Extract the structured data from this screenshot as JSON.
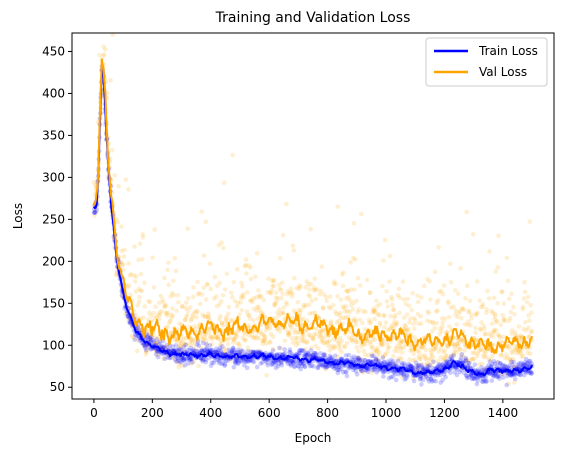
{
  "chart_data": {
    "type": "line",
    "title": "Training and Validation Loss",
    "xlabel": "Epoch",
    "ylabel": "Loss",
    "xlim": [
      -75,
      1575
    ],
    "ylim": [
      36,
      472
    ],
    "xticks": [
      0,
      200,
      400,
      600,
      800,
      1000,
      1200,
      1400
    ],
    "yticks": [
      50,
      100,
      150,
      200,
      250,
      300,
      350,
      400,
      450
    ],
    "grid": false,
    "legend": "top-right",
    "series": [
      {
        "name": "Train Loss",
        "color": "#0000ff",
        "line_keypoints": [
          [
            0,
            265
          ],
          [
            5,
            262
          ],
          [
            10,
            266
          ],
          [
            15,
            300
          ],
          [
            20,
            360
          ],
          [
            27,
            430
          ],
          [
            33,
            420
          ],
          [
            40,
            370
          ],
          [
            50,
            310
          ],
          [
            60,
            265
          ],
          [
            70,
            232
          ],
          [
            80,
            200
          ],
          [
            90,
            180
          ],
          [
            100,
            162
          ],
          [
            110,
            147
          ],
          [
            120,
            137
          ],
          [
            130,
            128
          ],
          [
            140,
            121
          ],
          [
            150,
            116
          ],
          [
            160,
            111
          ],
          [
            175,
            105
          ],
          [
            190,
            101
          ],
          [
            200,
            99
          ],
          [
            230,
            94
          ],
          [
            260,
            91
          ],
          [
            300,
            88
          ],
          [
            350,
            89
          ],
          [
            400,
            88
          ],
          [
            450,
            87
          ],
          [
            500,
            86
          ],
          [
            550,
            87
          ],
          [
            600,
            86
          ],
          [
            650,
            85
          ],
          [
            700,
            84
          ],
          [
            750,
            83
          ],
          [
            800,
            80
          ],
          [
            850,
            78
          ],
          [
            900,
            77
          ],
          [
            950,
            76
          ],
          [
            1000,
            74
          ],
          [
            1050,
            72
          ],
          [
            1100,
            68
          ],
          [
            1150,
            67
          ],
          [
            1200,
            72
          ],
          [
            1230,
            78
          ],
          [
            1260,
            75
          ],
          [
            1300,
            68
          ],
          [
            1330,
            63
          ],
          [
            1350,
            70
          ],
          [
            1380,
            72
          ],
          [
            1400,
            70
          ],
          [
            1430,
            68
          ],
          [
            1460,
            71
          ],
          [
            1480,
            73
          ],
          [
            1500,
            74
          ]
        ],
        "noise": 2.5
      },
      {
        "name": "Val Loss",
        "color": "#ffa500",
        "line_keypoints": [
          [
            0,
            270
          ],
          [
            5,
            268
          ],
          [
            10,
            272
          ],
          [
            15,
            305
          ],
          [
            20,
            370
          ],
          [
            27,
            440
          ],
          [
            33,
            425
          ],
          [
            40,
            380
          ],
          [
            50,
            320
          ],
          [
            60,
            280
          ],
          [
            70,
            245
          ],
          [
            80,
            210
          ],
          [
            90,
            190
          ],
          [
            100,
            175
          ],
          [
            110,
            160
          ],
          [
            120,
            150
          ],
          [
            130,
            140
          ],
          [
            150,
            130
          ],
          [
            175,
            122
          ],
          [
            200,
            118
          ],
          [
            250,
            115
          ],
          [
            300,
            113
          ],
          [
            350,
            118
          ],
          [
            400,
            122
          ],
          [
            450,
            120
          ],
          [
            500,
            121
          ],
          [
            550,
            122
          ],
          [
            600,
            127
          ],
          [
            650,
            128
          ],
          [
            700,
            126
          ],
          [
            750,
            124
          ],
          [
            800,
            121
          ],
          [
            850,
            119
          ],
          [
            900,
            115
          ],
          [
            950,
            113
          ],
          [
            1000,
            112
          ],
          [
            1050,
            110
          ],
          [
            1100,
            106
          ],
          [
            1150,
            103
          ],
          [
            1200,
            108
          ],
          [
            1250,
            111
          ],
          [
            1300,
            105
          ],
          [
            1350,
            98
          ],
          [
            1400,
            103
          ],
          [
            1450,
            102
          ],
          [
            1500,
            108
          ]
        ],
        "noise": 8
      }
    ],
    "scatter": [
      {
        "series": "Train Loss",
        "color": "#0000ff",
        "alpha": 0.2,
        "spread": 5
      },
      {
        "series": "Val Loss",
        "color": "#ffa500",
        "alpha": 0.18,
        "spread": 30
      }
    ]
  }
}
